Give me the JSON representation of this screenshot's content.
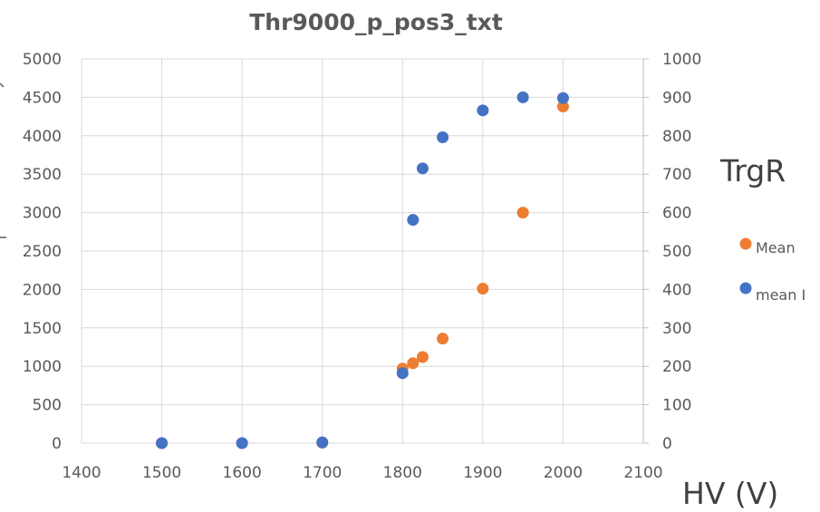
{
  "chart_data": {
    "type": "scatter",
    "title": "Thr9000_p_pos3_txt",
    "xlabel": "HV (V)",
    "y2label": "TrgR",
    "xlim": [
      1400,
      2100
    ],
    "x_ticks": [
      "1400",
      "1500",
      "1600",
      "1700",
      "1800",
      "1900",
      "2000",
      "2100"
    ],
    "ylim": [
      0,
      5000
    ],
    "y_ticks": [
      "0",
      "500",
      "1000",
      "1500",
      "2000",
      "2500",
      "3000",
      "3500",
      "4000",
      "4500",
      "5000"
    ],
    "y2lim": [
      0,
      1000
    ],
    "y2_ticks": [
      "0",
      "100",
      "200",
      "300",
      "400",
      "500",
      "600",
      "700",
      "800",
      "900",
      "1000"
    ],
    "grid": true,
    "legend_position": "right",
    "series": [
      {
        "name": "Mean",
        "color": "#ED7D31",
        "axis": "left",
        "x": [
          1500,
          1600,
          1700,
          1800,
          1813,
          1825,
          1850,
          1900,
          1950,
          2000
        ],
        "y": [
          0,
          0,
          5,
          970,
          1040,
          1120,
          1360,
          2010,
          3000,
          4380
        ]
      },
      {
        "name": "mean I",
        "color": "#4472C4",
        "axis": "right",
        "x": [
          1500,
          1600,
          1700,
          1800,
          1813,
          1825,
          1850,
          1900,
          1950,
          2000
        ],
        "y": [
          0,
          0,
          2,
          182,
          581,
          715,
          796,
          866,
          900,
          898
        ]
      }
    ]
  }
}
